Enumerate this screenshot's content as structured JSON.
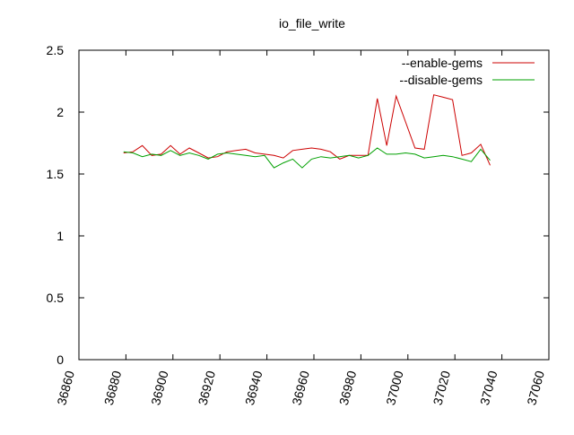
{
  "chart_data": {
    "type": "line",
    "title": "io_file_write",
    "xlabel": "",
    "ylabel": "",
    "xlim": [
      36860,
      37060
    ],
    "ylim": [
      0,
      2.5
    ],
    "x_ticks": [
      36860,
      36880,
      36900,
      36920,
      36940,
      36960,
      36980,
      37000,
      37020,
      37040,
      37060
    ],
    "y_ticks": [
      0,
      0.5,
      1,
      1.5,
      2,
      2.5
    ],
    "y_tick_labels": [
      "0",
      "0.5",
      "1",
      "1.5",
      "2",
      "2.5"
    ],
    "grid": false,
    "legend_position": "top-right",
    "series": [
      {
        "name": "--enable-gems",
        "color": "#cc0000",
        "points": [
          [
            36879,
            1.67
          ],
          [
            36883,
            1.68
          ],
          [
            36887,
            1.73
          ],
          [
            36891,
            1.65
          ],
          [
            36895,
            1.66
          ],
          [
            36899,
            1.73
          ],
          [
            36903,
            1.66
          ],
          [
            36907,
            1.71
          ],
          [
            36911,
            1.67
          ],
          [
            36915,
            1.63
          ],
          [
            36919,
            1.64
          ],
          [
            36923,
            1.68
          ],
          [
            36927,
            1.69
          ],
          [
            36931,
            1.7
          ],
          [
            36935,
            1.67
          ],
          [
            36939,
            1.66
          ],
          [
            36943,
            1.65
          ],
          [
            36947,
            1.63
          ],
          [
            36951,
            1.69
          ],
          [
            36955,
            1.7
          ],
          [
            36959,
            1.71
          ],
          [
            36963,
            1.7
          ],
          [
            36967,
            1.68
          ],
          [
            36971,
            1.62
          ],
          [
            36975,
            1.65
          ],
          [
            36979,
            1.65
          ],
          [
            36983,
            1.65
          ],
          [
            36987,
            2.11
          ],
          [
            36991,
            1.73
          ],
          [
            36995,
            2.13
          ],
          [
            36999,
            1.92
          ],
          [
            37003,
            1.71
          ],
          [
            37007,
            1.7
          ],
          [
            37011,
            2.14
          ],
          [
            37015,
            2.12
          ],
          [
            37019,
            2.1
          ],
          [
            37023,
            1.65
          ],
          [
            37027,
            1.67
          ],
          [
            37031,
            1.74
          ],
          [
            37035,
            1.57
          ]
        ]
      },
      {
        "name": "--disable-gems",
        "color": "#00a000",
        "points": [
          [
            36879,
            1.68
          ],
          [
            36883,
            1.67
          ],
          [
            36887,
            1.64
          ],
          [
            36891,
            1.66
          ],
          [
            36895,
            1.65
          ],
          [
            36899,
            1.69
          ],
          [
            36903,
            1.65
          ],
          [
            36907,
            1.67
          ],
          [
            36911,
            1.65
          ],
          [
            36915,
            1.62
          ],
          [
            36919,
            1.66
          ],
          [
            36923,
            1.67
          ],
          [
            36927,
            1.66
          ],
          [
            36931,
            1.65
          ],
          [
            36935,
            1.64
          ],
          [
            36939,
            1.65
          ],
          [
            36943,
            1.55
          ],
          [
            36947,
            1.59
          ],
          [
            36951,
            1.62
          ],
          [
            36955,
            1.55
          ],
          [
            36959,
            1.62
          ],
          [
            36963,
            1.64
          ],
          [
            36967,
            1.63
          ],
          [
            36971,
            1.64
          ],
          [
            36975,
            1.65
          ],
          [
            36979,
            1.63
          ],
          [
            36983,
            1.65
          ],
          [
            36987,
            1.71
          ],
          [
            36991,
            1.66
          ],
          [
            36995,
            1.66
          ],
          [
            36999,
            1.67
          ],
          [
            37003,
            1.66
          ],
          [
            37007,
            1.63
          ],
          [
            37011,
            1.64
          ],
          [
            37015,
            1.65
          ],
          [
            37019,
            1.64
          ],
          [
            37023,
            1.62
          ],
          [
            37027,
            1.6
          ],
          [
            37031,
            1.7
          ],
          [
            37035,
            1.61
          ]
        ]
      }
    ]
  }
}
